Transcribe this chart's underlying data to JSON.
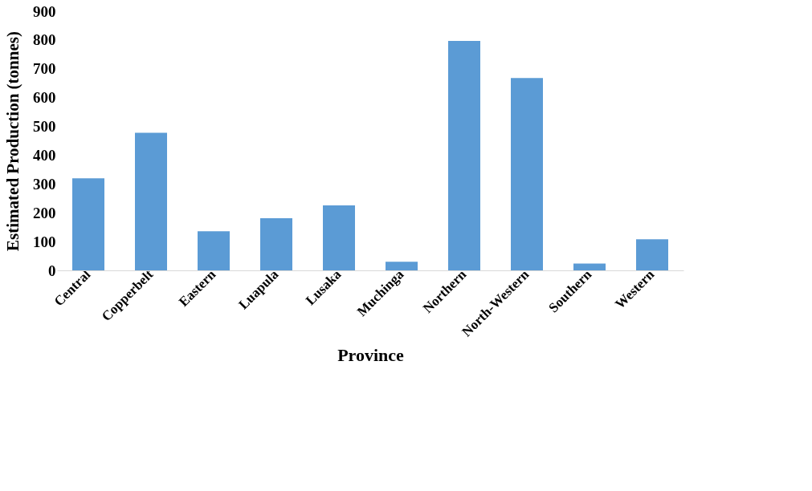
{
  "chart_data": {
    "type": "bar",
    "xlabel": "Province",
    "ylabel": "Estimated Production (tonnes)",
    "categories": [
      "Central",
      "Copperbelt",
      "Eastern",
      "Luapula",
      "Lusaka",
      "Muchinga",
      "Northern",
      "North-Western",
      "Southern",
      "Western"
    ],
    "values": [
      320,
      478,
      136,
      181,
      226,
      30,
      797,
      668,
      24,
      108
    ],
    "color": "#5b9bd5",
    "ylim": [
      0,
      900
    ],
    "yticks": [
      0,
      100,
      200,
      300,
      400,
      500,
      600,
      700,
      800,
      900
    ],
    "grid": false
  }
}
